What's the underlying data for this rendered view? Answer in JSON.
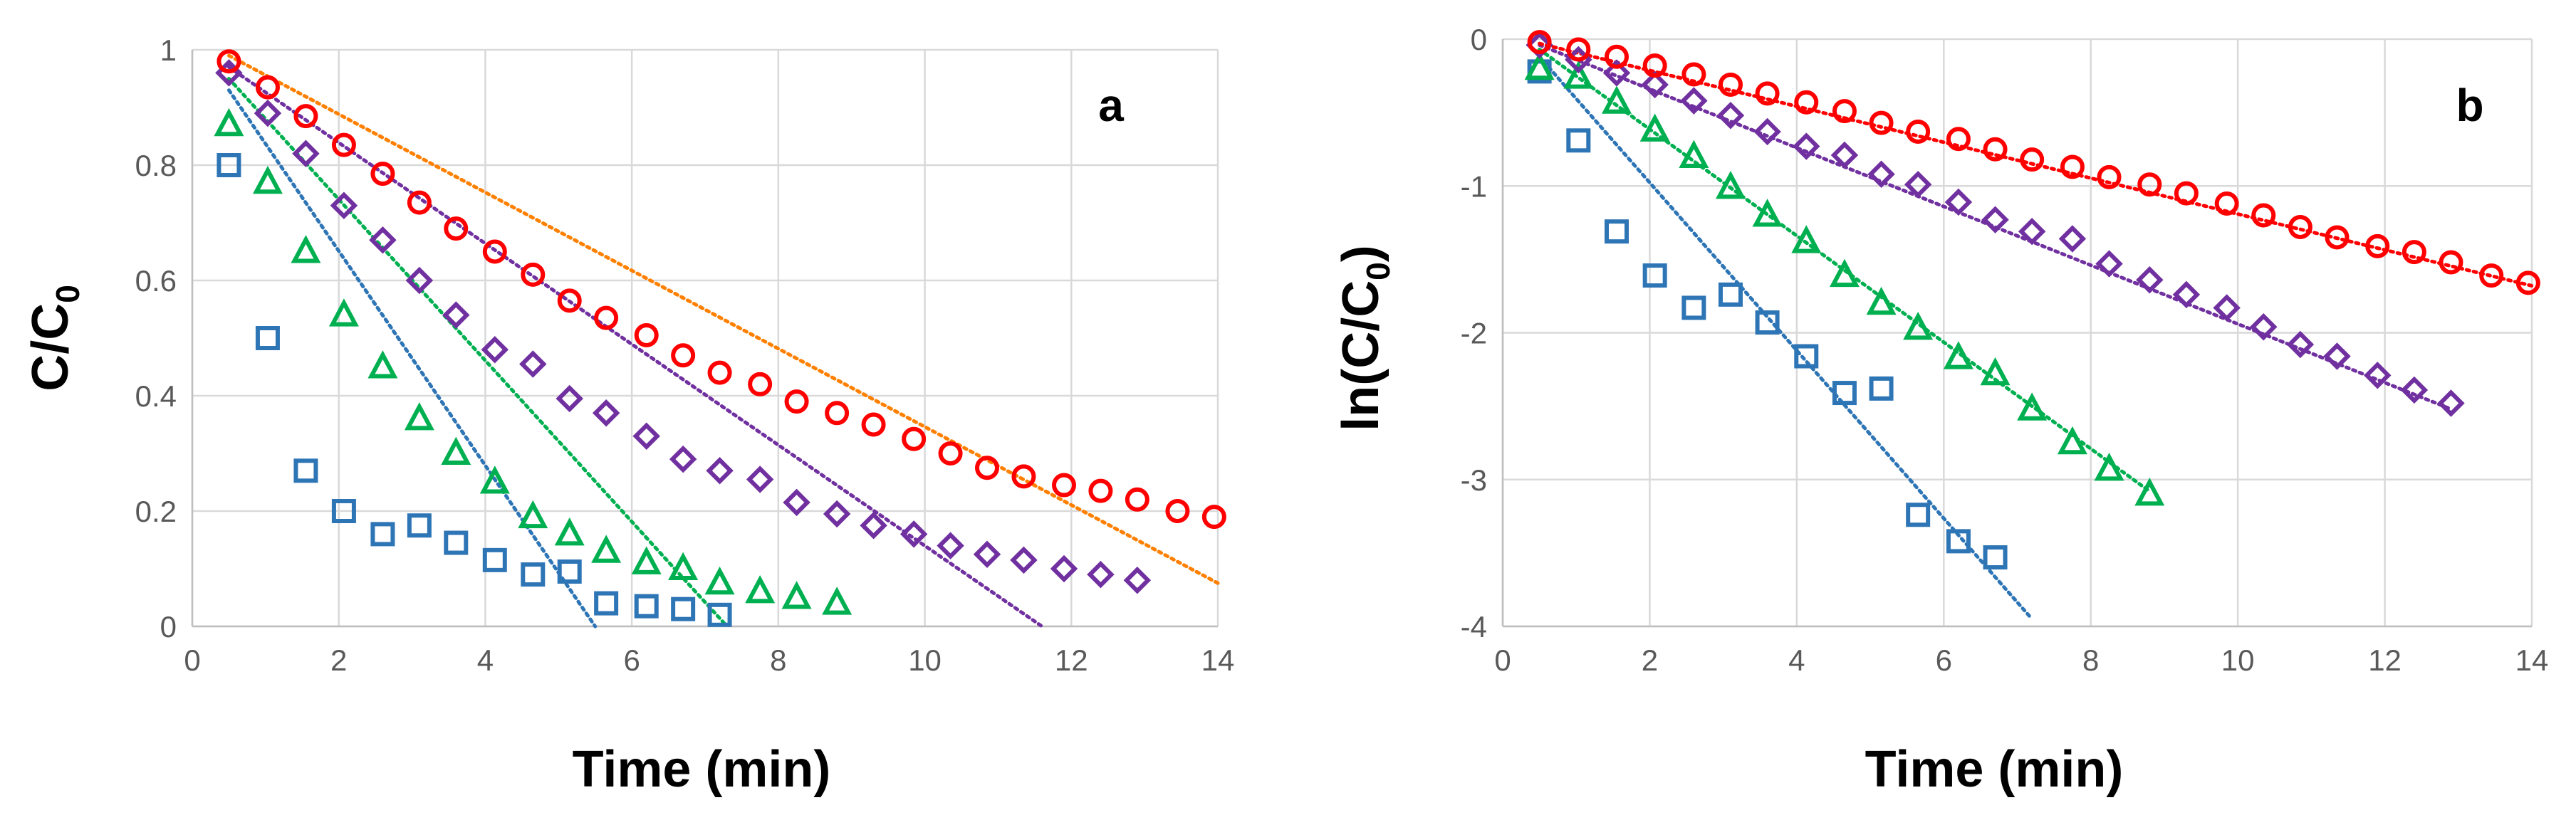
{
  "colors": {
    "blue": "#2e75b6",
    "green": "#00b050",
    "purple": "#7030a0",
    "red": "#ff0000",
    "orange": "#ff8000",
    "grid": "#d9d9d9",
    "tick_text": "#595959"
  },
  "chart_data": [
    {
      "type": "scatter",
      "panel_label": "a",
      "xlabel": "Time (min)",
      "ylabel": {
        "main": "C/C",
        "sub": "0"
      },
      "xlim": [
        0,
        14
      ],
      "ylim": [
        0,
        1
      ],
      "xticks": [
        0,
        2,
        4,
        6,
        8,
        10,
        12,
        14
      ],
      "yticks": [
        0,
        0.2,
        0.4,
        0.6,
        0.8,
        1
      ],
      "ytick_labels": [
        "0",
        "0.2",
        "0.4",
        "0.6",
        "0.8",
        "1"
      ],
      "grid": true,
      "legend": "none",
      "series": [
        {
          "marker": "square",
          "color": "#2e75b6",
          "x": [
            0.5,
            1.03,
            1.55,
            2.07,
            2.6,
            3.1,
            3.6,
            4.13,
            4.65,
            5.15,
            5.65,
            6.2,
            6.7,
            7.2
          ],
          "y": [
            0.8,
            0.5,
            0.27,
            0.2,
            0.16,
            0.175,
            0.145,
            0.115,
            0.09,
            0.095,
            0.04,
            0.035,
            0.03,
            0.02
          ]
        },
        {
          "marker": "triangle",
          "color": "#00b050",
          "x": [
            0.5,
            1.03,
            1.55,
            2.07,
            2.6,
            3.1,
            3.6,
            4.13,
            4.65,
            5.15,
            5.65,
            6.2,
            6.7,
            7.2,
            7.75,
            8.25,
            8.8
          ],
          "y": [
            0.87,
            0.77,
            0.65,
            0.54,
            0.45,
            0.36,
            0.3,
            0.25,
            0.19,
            0.16,
            0.13,
            0.11,
            0.1,
            0.075,
            0.06,
            0.05,
            0.04
          ]
        },
        {
          "marker": "diamond",
          "color": "#7030a0",
          "x": [
            0.5,
            1.03,
            1.55,
            2.07,
            2.6,
            3.1,
            3.6,
            4.13,
            4.65,
            5.15,
            5.65,
            6.2,
            6.7,
            7.2,
            7.75,
            8.25,
            8.8,
            9.3,
            9.85,
            10.35,
            10.85,
            11.35,
            11.9,
            12.4,
            12.9
          ],
          "y": [
            0.96,
            0.89,
            0.82,
            0.73,
            0.67,
            0.6,
            0.54,
            0.48,
            0.455,
            0.395,
            0.37,
            0.33,
            0.29,
            0.27,
            0.255,
            0.215,
            0.195,
            0.175,
            0.16,
            0.14,
            0.125,
            0.115,
            0.1,
            0.09,
            0.08
          ]
        },
        {
          "marker": "circle",
          "color": "#ff0000",
          "x": [
            0.5,
            1.03,
            1.55,
            2.07,
            2.6,
            3.1,
            3.6,
            4.13,
            4.65,
            5.15,
            5.65,
            6.2,
            6.7,
            7.2,
            7.75,
            8.25,
            8.8,
            9.3,
            9.85,
            10.35,
            10.85,
            11.35,
            11.9,
            12.4,
            12.9,
            13.45,
            13.95
          ],
          "y": [
            0.98,
            0.935,
            0.885,
            0.835,
            0.785,
            0.735,
            0.69,
            0.65,
            0.61,
            0.565,
            0.535,
            0.505,
            0.47,
            0.44,
            0.42,
            0.39,
            0.37,
            0.35,
            0.325,
            0.3,
            0.275,
            0.26,
            0.245,
            0.235,
            0.22,
            0.2,
            0.19
          ]
        }
      ],
      "trendlines": [
        {
          "color": "#2e75b6",
          "x1": 0.5,
          "y1": 0.93,
          "x2": 5.5,
          "y2": 0
        },
        {
          "color": "#00b050",
          "x1": 0.5,
          "y1": 0.95,
          "x2": 7.3,
          "y2": 0
        },
        {
          "color": "#7030a0",
          "x1": 0.5,
          "y1": 0.97,
          "x2": 11.6,
          "y2": 0
        },
        {
          "color": "#ff8000",
          "x1": 0.5,
          "y1": 0.99,
          "x2": 14,
          "y2": 0.075
        }
      ]
    },
    {
      "type": "scatter",
      "panel_label": "b",
      "xlabel": "Time (min)",
      "ylabel": {
        "main": "ln(C/C",
        "sub": "0",
        "end": ")"
      },
      "xlim": [
        0,
        14
      ],
      "ylim": [
        -4,
        0
      ],
      "xticks": [
        0,
        2,
        4,
        6,
        8,
        10,
        12,
        14
      ],
      "yticks": [
        -4,
        -3,
        -2,
        -1,
        0
      ],
      "ytick_labels": [
        "-4",
        "-3",
        "-2",
        "-1",
        "0"
      ],
      "grid": true,
      "legend": "none",
      "series": [
        {
          "marker": "square",
          "color": "#2e75b6",
          "x": [
            0.5,
            1.03,
            1.55,
            2.07,
            2.6,
            3.1,
            3.6,
            4.13,
            4.65,
            5.15,
            5.65,
            6.2,
            6.7
          ],
          "y": [
            -0.22,
            -0.69,
            -1.31,
            -1.61,
            -1.83,
            -1.74,
            -1.93,
            -2.16,
            -2.41,
            -2.38,
            -3.24,
            -3.42,
            -3.53
          ]
        },
        {
          "marker": "triangle",
          "color": "#00b050",
          "x": [
            0.5,
            1.03,
            1.55,
            2.07,
            2.6,
            3.1,
            3.6,
            4.13,
            4.65,
            5.15,
            5.65,
            6.2,
            6.7,
            7.2,
            7.75,
            8.25,
            8.8
          ],
          "y": [
            -0.2,
            -0.26,
            -0.43,
            -0.62,
            -0.8,
            -1.01,
            -1.2,
            -1.38,
            -1.61,
            -1.8,
            -1.97,
            -2.17,
            -2.28,
            -2.52,
            -2.75,
            -2.93,
            -3.1
          ]
        },
        {
          "marker": "diamond",
          "color": "#7030a0",
          "x": [
            0.5,
            1.03,
            1.55,
            2.07,
            2.6,
            3.1,
            3.6,
            4.13,
            4.65,
            5.15,
            5.65,
            6.2,
            6.7,
            7.2,
            7.75,
            8.25,
            8.8,
            9.3,
            9.85,
            10.35,
            10.85,
            11.35,
            11.9,
            12.4,
            12.9
          ],
          "y": [
            -0.04,
            -0.14,
            -0.23,
            -0.31,
            -0.42,
            -0.52,
            -0.63,
            -0.73,
            -0.79,
            -0.92,
            -0.99,
            -1.11,
            -1.23,
            -1.31,
            -1.36,
            -1.53,
            -1.64,
            -1.74,
            -1.83,
            -1.96,
            -2.08,
            -2.16,
            -2.29,
            -2.39,
            -2.48
          ]
        },
        {
          "marker": "circle",
          "color": "#ff0000",
          "x": [
            0.5,
            1.03,
            1.55,
            2.07,
            2.6,
            3.1,
            3.6,
            4.13,
            4.65,
            5.15,
            5.65,
            6.2,
            6.7,
            7.2,
            7.75,
            8.25,
            8.8,
            9.3,
            9.85,
            10.35,
            10.85,
            11.35,
            11.9,
            12.4,
            12.9,
            13.45,
            13.95
          ],
          "y": [
            -0.02,
            -0.07,
            -0.12,
            -0.18,
            -0.24,
            -0.31,
            -0.37,
            -0.43,
            -0.49,
            -0.57,
            -0.63,
            -0.68,
            -0.75,
            -0.82,
            -0.87,
            -0.94,
            -0.99,
            -1.05,
            -1.12,
            -1.2,
            -1.28,
            -1.35,
            -1.41,
            -1.45,
            -1.52,
            -1.61,
            -1.66
          ]
        }
      ],
      "trendlines": [
        {
          "color": "#2e75b6",
          "x1": 0.5,
          "y1": -0.12,
          "x2": 7.2,
          "y2": -3.95
        },
        {
          "color": "#00b050",
          "x1": 0.5,
          "y1": -0.07,
          "x2": 8.8,
          "y2": -3.08
        },
        {
          "color": "#7030a0",
          "x1": 0.5,
          "y1": -0.04,
          "x2": 12.9,
          "y2": -2.52
        },
        {
          "color": "#ff0000",
          "x1": 0.5,
          "y1": -0.03,
          "x2": 14,
          "y2": -1.68
        }
      ]
    }
  ]
}
